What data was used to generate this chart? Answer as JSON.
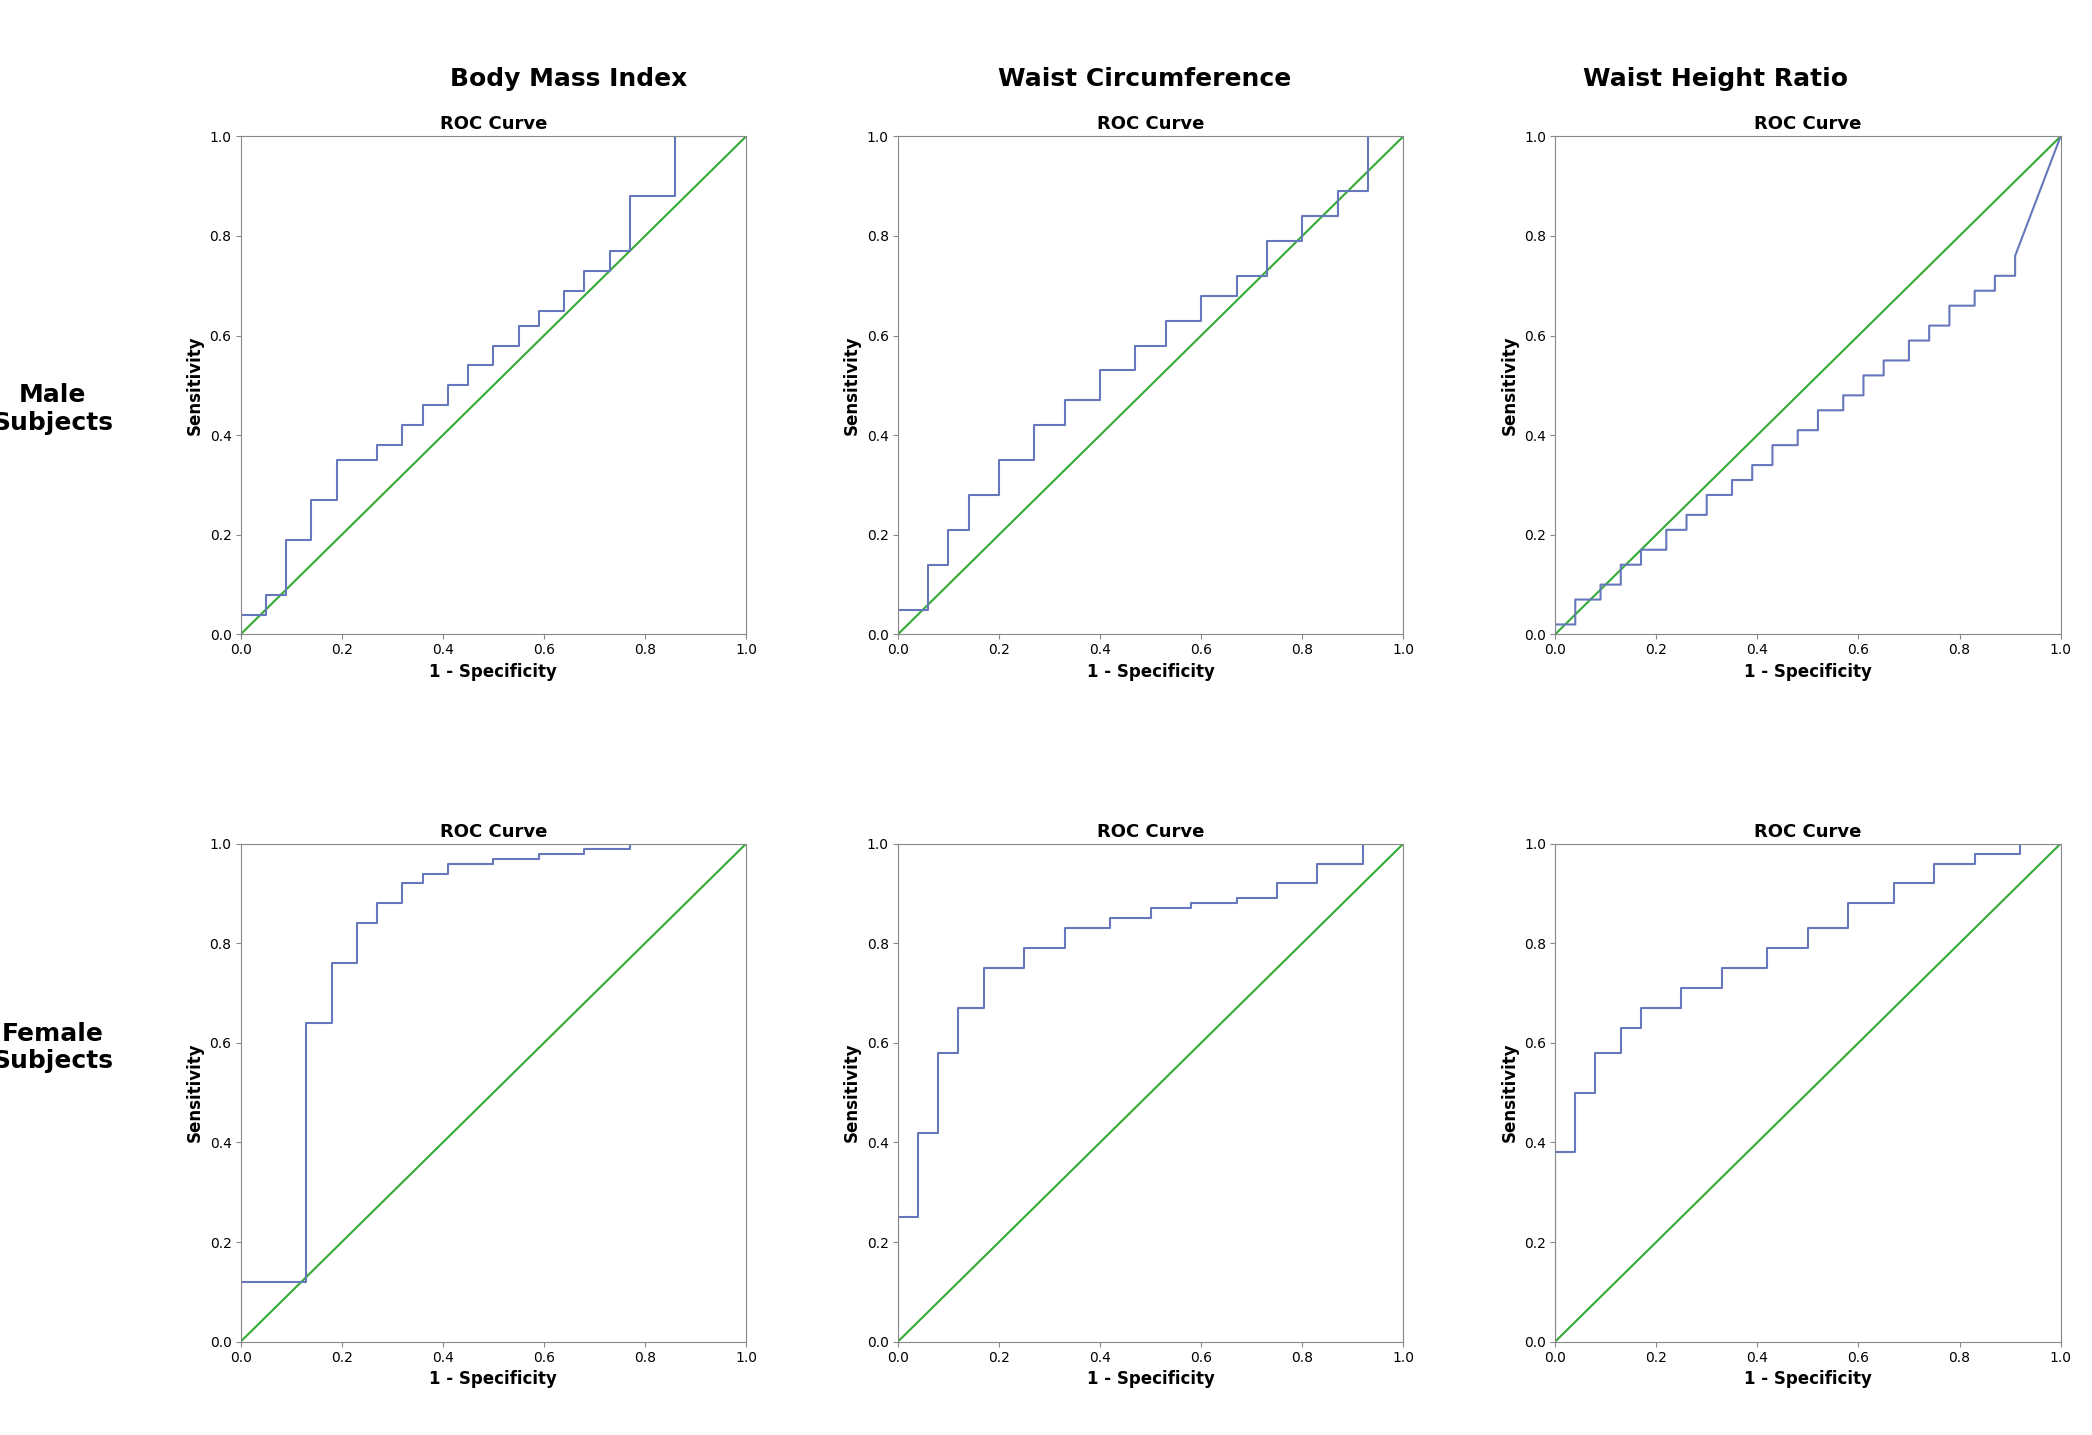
{
  "col_titles": [
    "Body Mass Index",
    "Waist Circumference",
    "Waist Height Ratio"
  ],
  "row_labels": [
    "Male\nSubjects",
    "Female\nSubjects"
  ],
  "subplot_title": "ROC Curve",
  "xlabel": "1 - Specificity",
  "ylabel": "Sensitivity",
  "roc_color": "#6677bb",
  "diag_color": "#33aa33",
  "roc_linewidth": 1.5,
  "diag_linewidth": 1.5,
  "curves": {
    "male_bmi": {
      "fpr": [
        0.0,
        0.0,
        0.05,
        0.05,
        0.09,
        0.09,
        0.14,
        0.14,
        0.19,
        0.19,
        0.27,
        0.27,
        0.32,
        0.32,
        0.36,
        0.36,
        0.41,
        0.41,
        0.45,
        0.45,
        0.5,
        0.5,
        0.55,
        0.55,
        0.59,
        0.59,
        0.64,
        0.64,
        0.68,
        0.68,
        0.73,
        0.73,
        0.77,
        0.77,
        0.86,
        0.86,
        1.0
      ],
      "tpr": [
        0.0,
        0.04,
        0.04,
        0.08,
        0.08,
        0.19,
        0.19,
        0.27,
        0.27,
        0.35,
        0.35,
        0.38,
        0.38,
        0.42,
        0.42,
        0.46,
        0.46,
        0.5,
        0.5,
        0.54,
        0.54,
        0.58,
        0.58,
        0.62,
        0.62,
        0.65,
        0.65,
        0.69,
        0.69,
        0.73,
        0.73,
        0.77,
        0.77,
        0.88,
        0.88,
        1.0,
        1.0
      ]
    },
    "male_wc": {
      "fpr": [
        0.0,
        0.0,
        0.06,
        0.06,
        0.1,
        0.1,
        0.14,
        0.14,
        0.2,
        0.2,
        0.27,
        0.27,
        0.33,
        0.33,
        0.4,
        0.4,
        0.47,
        0.47,
        0.53,
        0.53,
        0.6,
        0.6,
        0.67,
        0.67,
        0.73,
        0.73,
        0.8,
        0.8,
        0.87,
        0.87,
        0.93,
        0.93,
        1.0
      ],
      "tpr": [
        0.0,
        0.05,
        0.05,
        0.14,
        0.14,
        0.21,
        0.21,
        0.28,
        0.28,
        0.35,
        0.35,
        0.42,
        0.42,
        0.47,
        0.47,
        0.53,
        0.53,
        0.58,
        0.58,
        0.63,
        0.63,
        0.68,
        0.68,
        0.72,
        0.72,
        0.79,
        0.79,
        0.84,
        0.84,
        0.89,
        0.89,
        1.0,
        1.0
      ]
    },
    "male_whr": {
      "fpr": [
        0.0,
        0.0,
        0.04,
        0.04,
        0.09,
        0.09,
        0.13,
        0.13,
        0.17,
        0.17,
        0.22,
        0.22,
        0.26,
        0.26,
        0.3,
        0.3,
        0.35,
        0.35,
        0.39,
        0.39,
        0.43,
        0.43,
        0.48,
        0.48,
        0.52,
        0.52,
        0.57,
        0.57,
        0.61,
        0.61,
        0.65,
        0.65,
        0.7,
        0.7,
        0.74,
        0.74,
        0.78,
        0.78,
        0.83,
        0.83,
        0.87,
        0.87,
        0.91,
        0.91,
        1.0
      ],
      "tpr": [
        0.0,
        0.02,
        0.02,
        0.07,
        0.07,
        0.1,
        0.1,
        0.14,
        0.14,
        0.17,
        0.17,
        0.21,
        0.21,
        0.24,
        0.24,
        0.28,
        0.28,
        0.31,
        0.31,
        0.34,
        0.34,
        0.38,
        0.38,
        0.41,
        0.41,
        0.45,
        0.45,
        0.48,
        0.48,
        0.52,
        0.52,
        0.55,
        0.55,
        0.59,
        0.59,
        0.62,
        0.62,
        0.66,
        0.66,
        0.69,
        0.69,
        0.72,
        0.72,
        0.76,
        1.0
      ]
    },
    "female_bmi": {
      "fpr": [
        0.0,
        0.0,
        0.13,
        0.13,
        0.18,
        0.18,
        0.23,
        0.23,
        0.27,
        0.27,
        0.32,
        0.32,
        0.36,
        0.36,
        0.41,
        0.41,
        0.5,
        0.5,
        0.59,
        0.59,
        0.68,
        0.68,
        0.77,
        0.77,
        0.86,
        0.86,
        1.0
      ],
      "tpr": [
        0.0,
        0.12,
        0.12,
        0.64,
        0.64,
        0.76,
        0.76,
        0.84,
        0.84,
        0.88,
        0.88,
        0.92,
        0.92,
        0.94,
        0.94,
        0.96,
        0.96,
        0.97,
        0.97,
        0.98,
        0.98,
        0.99,
        0.99,
        1.0,
        1.0,
        1.0,
        1.0
      ]
    },
    "female_wc": {
      "fpr": [
        0.0,
        0.0,
        0.04,
        0.04,
        0.08,
        0.08,
        0.12,
        0.12,
        0.17,
        0.17,
        0.25,
        0.25,
        0.33,
        0.33,
        0.42,
        0.42,
        0.5,
        0.5,
        0.58,
        0.58,
        0.67,
        0.67,
        0.75,
        0.75,
        0.83,
        0.83,
        0.92,
        0.92,
        1.0
      ],
      "tpr": [
        0.0,
        0.25,
        0.25,
        0.42,
        0.42,
        0.58,
        0.58,
        0.67,
        0.67,
        0.75,
        0.75,
        0.79,
        0.79,
        0.83,
        0.83,
        0.85,
        0.85,
        0.87,
        0.87,
        0.88,
        0.88,
        0.89,
        0.89,
        0.92,
        0.92,
        0.96,
        0.96,
        1.0,
        1.0
      ]
    },
    "female_whr": {
      "fpr": [
        0.0,
        0.0,
        0.04,
        0.04,
        0.08,
        0.08,
        0.13,
        0.13,
        0.17,
        0.17,
        0.25,
        0.25,
        0.33,
        0.33,
        0.42,
        0.42,
        0.5,
        0.5,
        0.58,
        0.58,
        0.67,
        0.67,
        0.75,
        0.75,
        0.83,
        0.83,
        0.92,
        0.92,
        1.0
      ],
      "tpr": [
        0.0,
        0.38,
        0.38,
        0.5,
        0.5,
        0.58,
        0.58,
        0.63,
        0.63,
        0.67,
        0.67,
        0.71,
        0.71,
        0.75,
        0.75,
        0.79,
        0.79,
        0.83,
        0.83,
        0.88,
        0.88,
        0.92,
        0.92,
        0.96,
        0.96,
        0.98,
        0.98,
        1.0,
        1.0
      ]
    }
  },
  "bg_color": "#f2f2f2",
  "spine_color": "#888888",
  "tick_color": "#555555"
}
